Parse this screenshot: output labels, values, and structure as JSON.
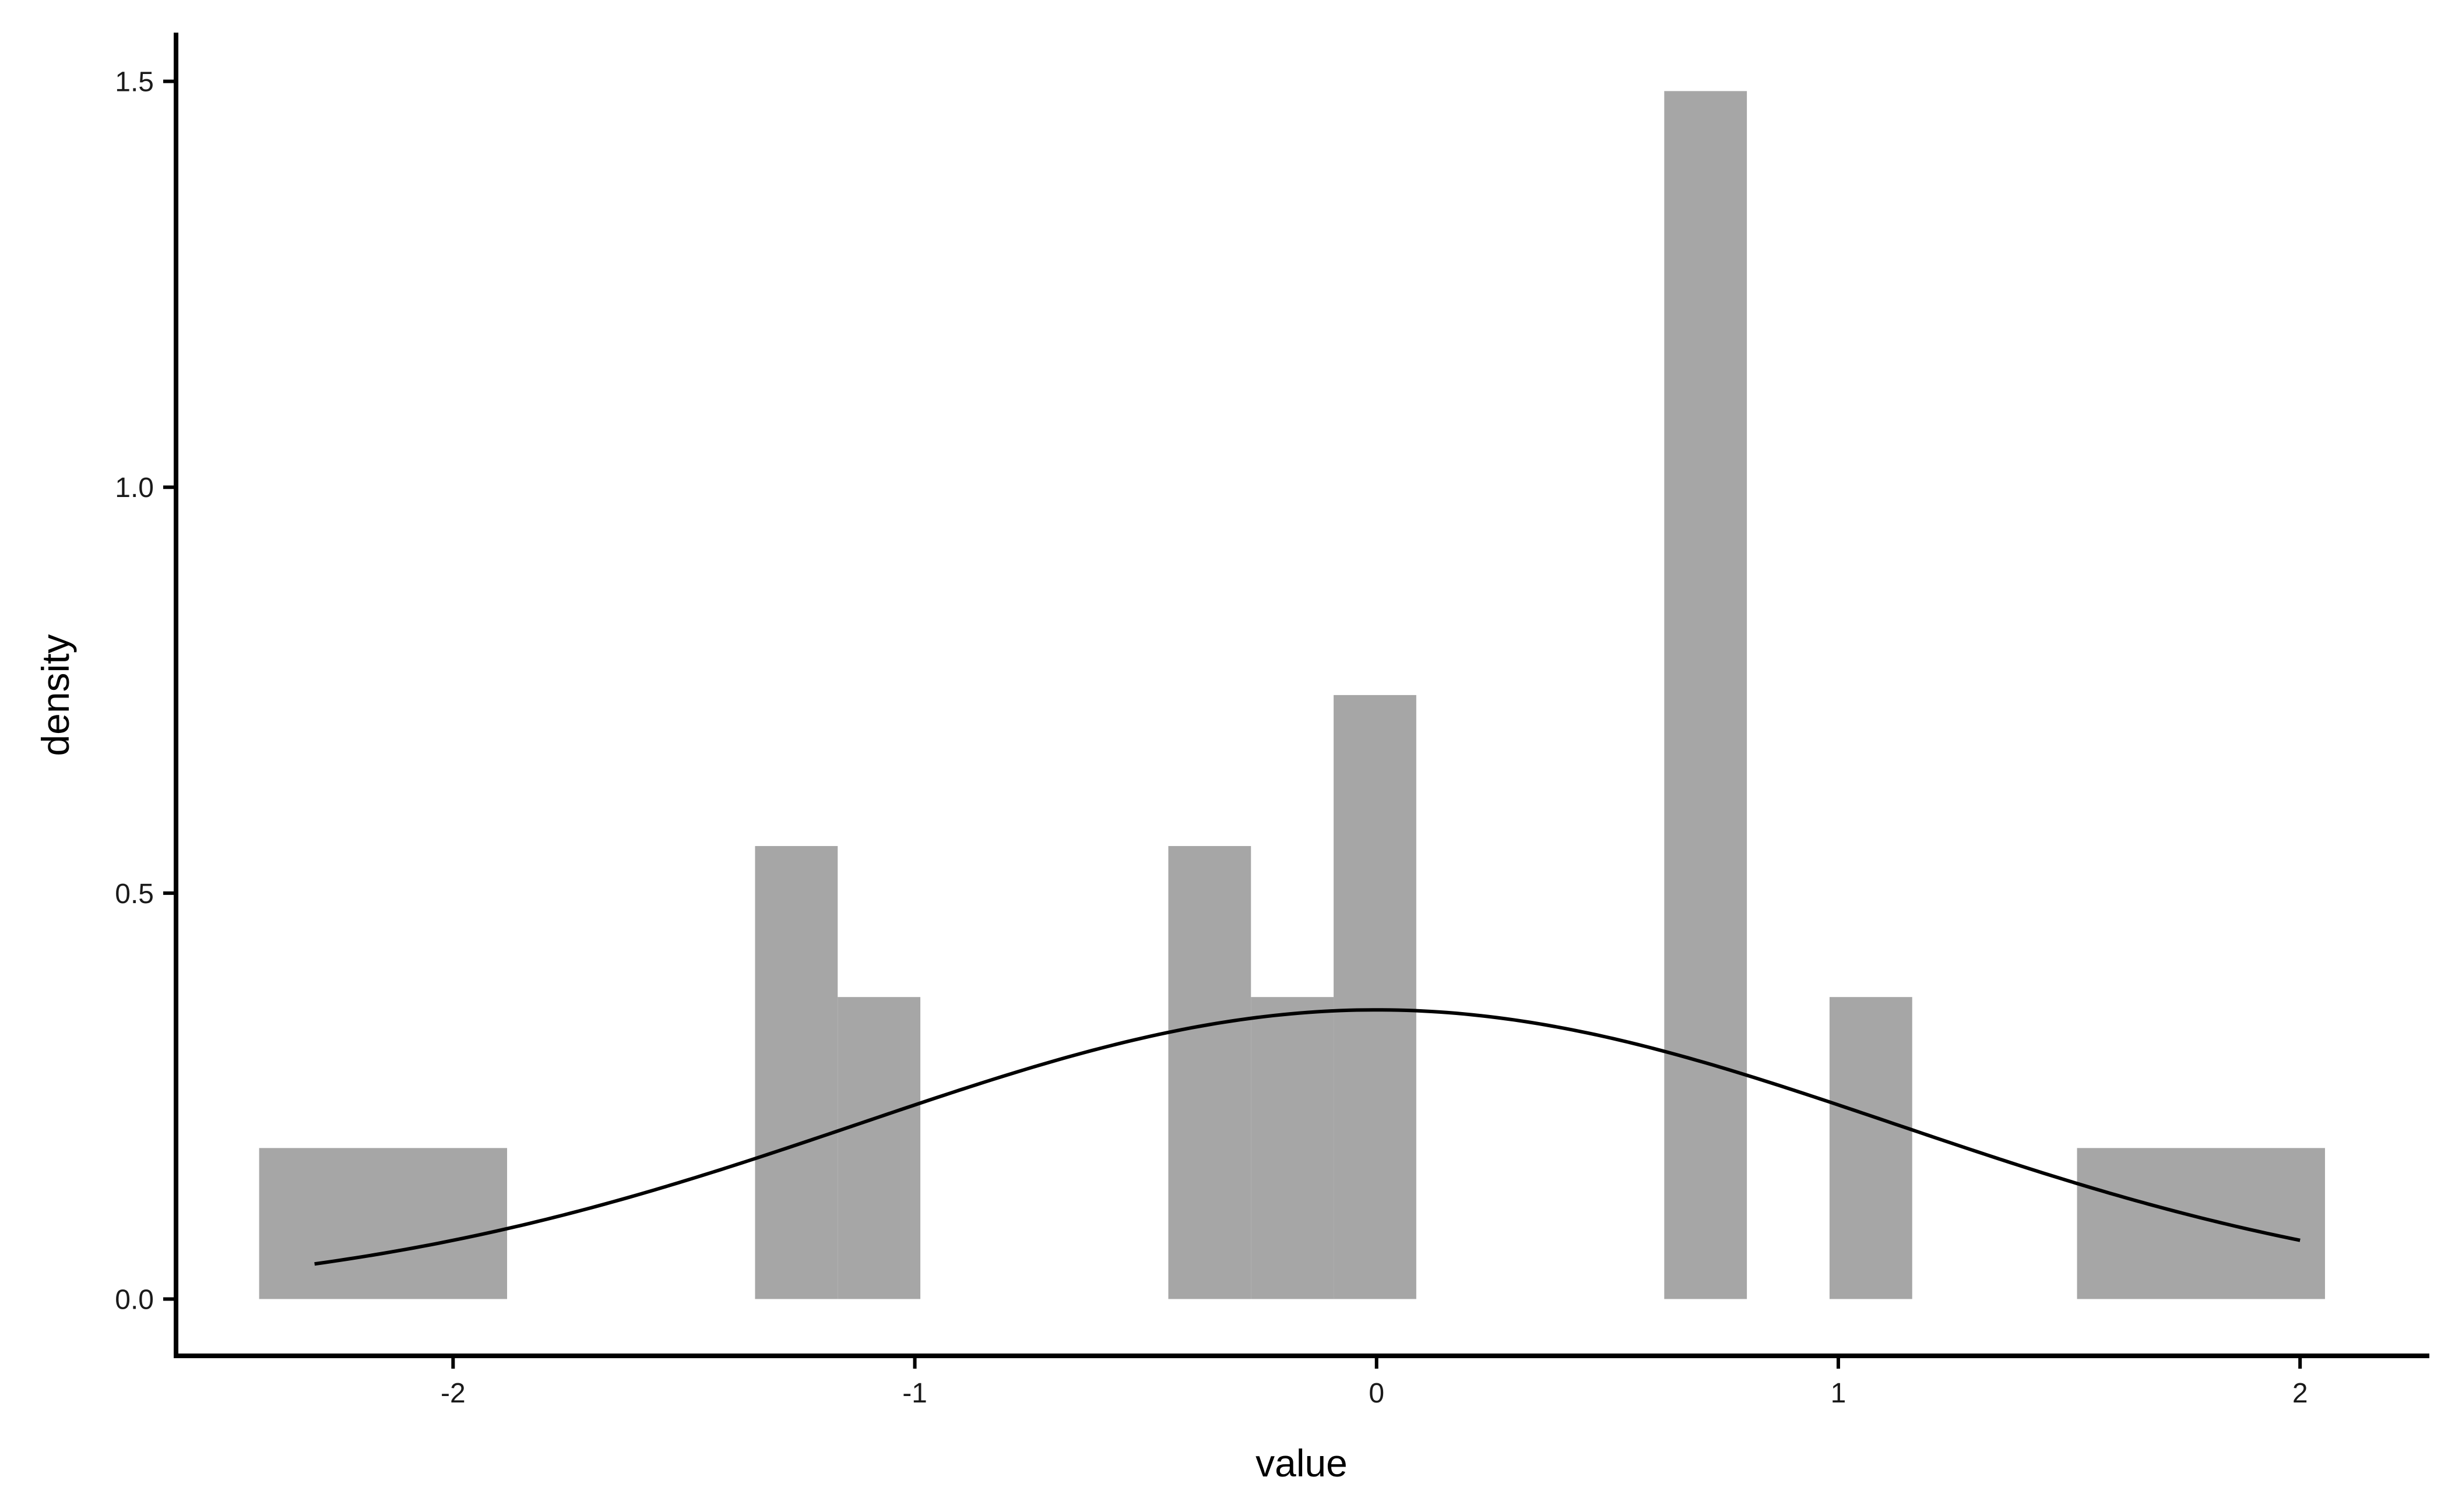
{
  "chart_data": {
    "type": "bar",
    "title": "",
    "xlabel": "value",
    "ylabel": "density",
    "xlim": [
      -2.6,
      2.28
    ],
    "ylim": [
      -0.07,
      1.56
    ],
    "x_ticks": [
      -2,
      -1,
      0,
      1,
      2
    ],
    "x_tick_labels": [
      "-2",
      "-1",
      "0",
      "1",
      "2"
    ],
    "y_ticks": [
      0.0,
      0.5,
      1.0,
      1.5
    ],
    "y_tick_labels": [
      "0.0",
      "0.5",
      "1.0",
      "1.5"
    ],
    "grid": false,
    "bin_width": 0.179,
    "bins": [
      {
        "x0": -2.42,
        "x1": -1.883,
        "density": 0.186
      },
      {
        "x0": -1.346,
        "x1": -1.167,
        "density": 0.558
      },
      {
        "x0": -1.167,
        "x1": -0.988,
        "density": 0.372
      },
      {
        "x0": -0.451,
        "x1": -0.272,
        "density": 0.558
      },
      {
        "x0": -0.272,
        "x1": -0.093,
        "density": 0.372
      },
      {
        "x0": -0.093,
        "x1": 0.086,
        "density": 0.744
      },
      {
        "x0": 0.623,
        "x1": 0.802,
        "density": 1.488
      },
      {
        "x0": 0.981,
        "x1": 1.16,
        "density": 0.372
      },
      {
        "x0": 1.517,
        "x1": 2.054,
        "density": 0.186
      }
    ],
    "density_curve": {
      "type": "line",
      "distribution": "normal",
      "mean": 0.0,
      "sd": 1.12,
      "x_range": [
        -2.3,
        2.0
      ]
    },
    "colors": {
      "bars": "#a6a6a6",
      "curve": "#000000",
      "axis": "#000000"
    }
  }
}
